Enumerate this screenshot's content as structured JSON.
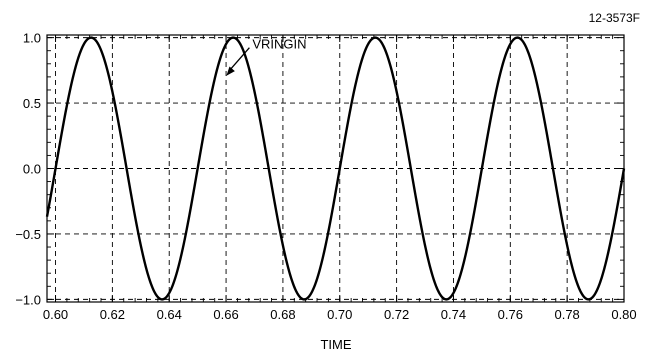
{
  "figure_id": "12-3573F",
  "chart_data": {
    "type": "line",
    "title": "",
    "xlabel": "TIME",
    "ylabel": "",
    "xlim": [
      0.597,
      0.8
    ],
    "ylim": [
      -1.02,
      1.02
    ],
    "grid": true,
    "x_ticks": [
      0.6,
      0.62,
      0.64,
      0.66,
      0.68,
      0.7,
      0.72,
      0.74,
      0.76,
      0.78,
      0.8
    ],
    "x_tick_labels": [
      "0.60",
      "0.62",
      "0.64",
      "0.66",
      "0.68",
      "0.70",
      "0.72",
      "0.74",
      "0.76",
      "0.78",
      "0.80"
    ],
    "y_ticks": [
      1.0,
      0.5,
      0.0,
      -0.5,
      -1.0
    ],
    "y_tick_labels": [
      "1.0",
      "0.5",
      "0.0",
      "−0.5",
      "−1.0"
    ],
    "series": [
      {
        "name": "VRINGIN",
        "function": "sine",
        "amplitude": 1.0,
        "period": 0.05,
        "zero_crossing_rising": 0.6,
        "x_start": 0.597,
        "x_end": 0.8
      }
    ],
    "annotations": [
      {
        "text": "VRINGIN",
        "x": 0.6675,
        "y": 0.9
      }
    ]
  }
}
